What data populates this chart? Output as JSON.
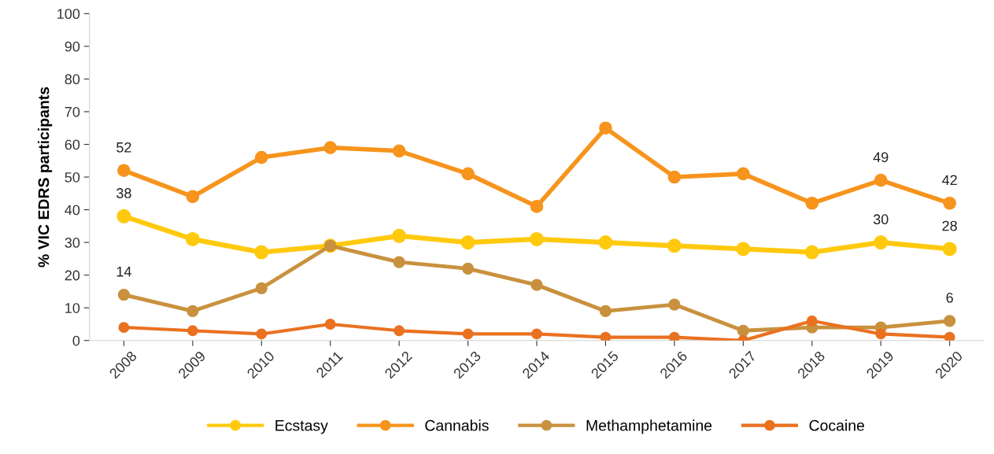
{
  "chart_data": {
    "type": "line",
    "ylabel": "% VIC EDRS participants",
    "categories": [
      "2008",
      "2009",
      "2010",
      "2011",
      "2012",
      "2013",
      "2014",
      "2015",
      "2016",
      "2017",
      "2018",
      "2019",
      "2020"
    ],
    "series": [
      {
        "name": "Ecstasy",
        "color": "#ffc90e",
        "values": [
          38,
          31,
          27,
          29,
          32,
          30,
          31,
          30,
          29,
          28,
          27,
          30,
          28
        ],
        "value_labels": [
          "38",
          null,
          null,
          null,
          null,
          null,
          null,
          null,
          null,
          null,
          null,
          "30",
          "28"
        ]
      },
      {
        "name": "Cannabis",
        "color": "#f7941d",
        "values": [
          52,
          44,
          56,
          59,
          58,
          51,
          41,
          65,
          50,
          51,
          42,
          49,
          42
        ],
        "value_labels": [
          "52",
          null,
          null,
          null,
          null,
          null,
          null,
          null,
          null,
          null,
          null,
          "49",
          "42"
        ]
      },
      {
        "name": "Methamphetamine",
        "color": "#c9913e",
        "values": [
          14,
          9,
          16,
          29,
          24,
          22,
          17,
          9,
          11,
          3,
          4,
          4,
          6
        ],
        "value_labels": [
          "14",
          null,
          null,
          null,
          null,
          null,
          null,
          null,
          null,
          null,
          null,
          null,
          "6"
        ]
      },
      {
        "name": "Cocaine",
        "color": "#ea7120",
        "values": [
          4,
          3,
          2,
          5,
          3,
          2,
          2,
          1,
          1,
          0,
          6,
          2,
          1
        ]
      }
    ],
    "ylim": [
      0,
      100
    ],
    "yticks": [
      0,
      10,
      20,
      30,
      40,
      50,
      60,
      70,
      80,
      90,
      100
    ],
    "grid": false,
    "legend": "bottom",
    "marker": "circle",
    "line_style": "solid"
  }
}
